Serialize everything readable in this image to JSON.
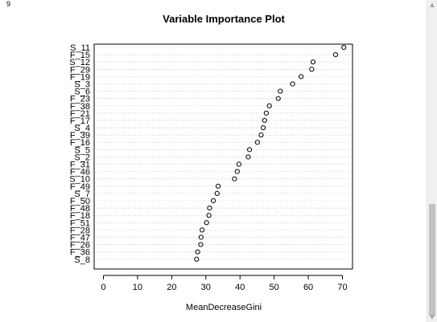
{
  "page_number": "9",
  "chart_data": {
    "type": "scatter",
    "title": "Variable Importance Plot",
    "xlabel": "MeanDecreaseGini",
    "ylabel": "",
    "xlim": [
      0,
      70
    ],
    "x_ticks": [
      "0",
      "10",
      "20",
      "30",
      "40",
      "50",
      "60",
      "70"
    ],
    "grid": "dotted horizontal lines",
    "categories": [
      "S_11",
      "F_15",
      "S_12",
      "F_29",
      "F_19",
      "S_3",
      "S_6",
      "F_23",
      "F_38",
      "F_21",
      "F_17",
      "S_4",
      "F_39",
      "F_16",
      "S_5",
      "S_2",
      "F_31",
      "F_46",
      "S_10",
      "F_49",
      "S_7",
      "F_50",
      "F_48",
      "F_18",
      "F_51",
      "F_28",
      "F_47",
      "F_26",
      "F_36",
      "S_8"
    ],
    "values": [
      70.4,
      68.0,
      61.4,
      61.0,
      57.9,
      55.4,
      51.8,
      51.2,
      48.6,
      47.7,
      47.2,
      46.8,
      46.2,
      45.1,
      42.8,
      42.4,
      39.7,
      39.2,
      38.4,
      33.6,
      33.3,
      32.2,
      31.1,
      30.9,
      30.2,
      28.9,
      28.6,
      28.5,
      27.6,
      27.3
    ]
  },
  "colors": {
    "point": "#000000",
    "grid": "#b0b0b0",
    "frame": "#000000"
  }
}
